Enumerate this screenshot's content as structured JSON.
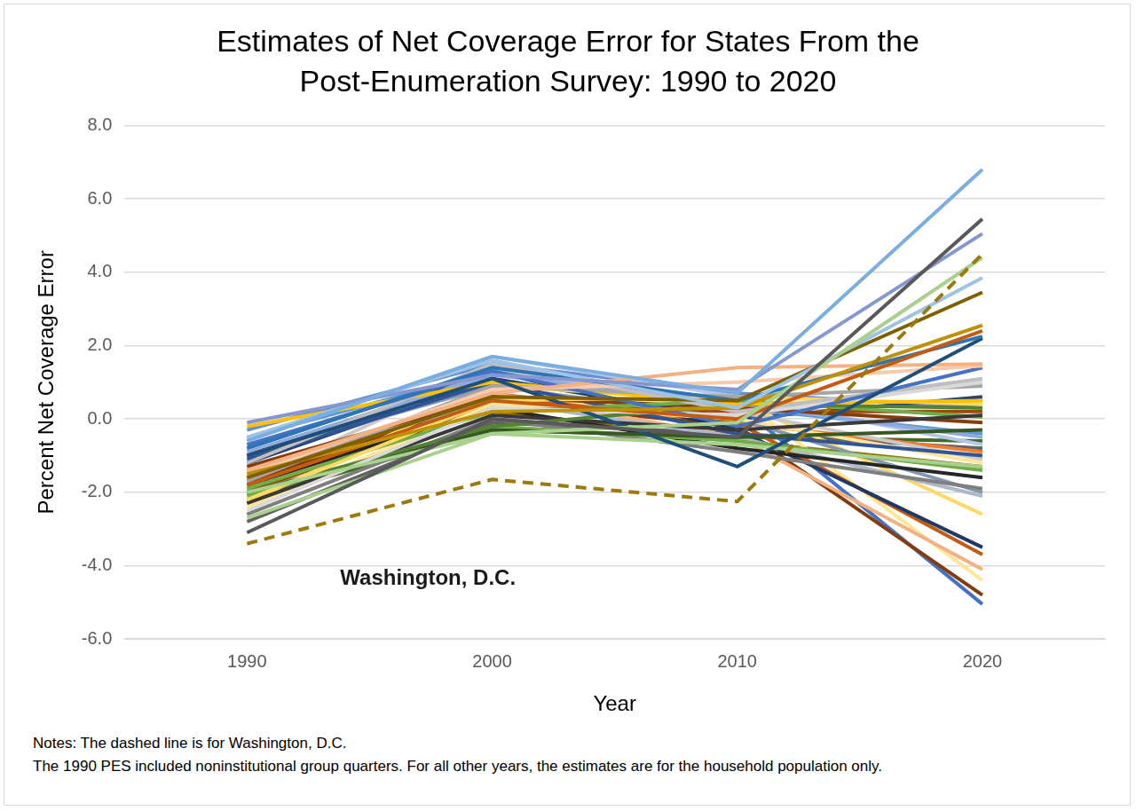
{
  "chart_data": {
    "type": "line",
    "title": [
      "Estimates of Net Coverage Error for States From the",
      "Post-Enumeration Survey: 1990 to 2020"
    ],
    "x_label": "Year",
    "y_label": "Percent Net Coverage Error",
    "notes": [
      "Notes: The dashed line is for Washington, D.C.",
      "The 1990 PES included noninstitutional group quarters. For all other years, the estimates are for the household population only."
    ],
    "categories": [
      "1990",
      "2000",
      "2010",
      "2020"
    ],
    "ylim": [
      -6,
      8
    ],
    "yticks": [
      {
        "value": -6,
        "label": "-6.0"
      },
      {
        "value": -4,
        "label": "-4.0"
      },
      {
        "value": -2,
        "label": "-2.0"
      },
      {
        "value": 0,
        "label": "0.0"
      },
      {
        "value": 2,
        "label": "2.0"
      },
      {
        "value": 4,
        "label": "4.0"
      },
      {
        "value": 6,
        "label": "6.0"
      },
      {
        "value": 8,
        "label": "8.0"
      }
    ],
    "grid": true,
    "series": [
      {
        "color": "#7aaee0",
        "values": [
          -0.6,
          1.7,
          0.7,
          6.8
        ]
      },
      {
        "color": "#595959",
        "values": [
          -3.1,
          0.0,
          -0.5,
          5.45
        ]
      },
      {
        "color": "#8497d0",
        "values": [
          -0.1,
          1.2,
          0.8,
          5.05
        ]
      },
      {
        "color": "#a9d18e",
        "values": [
          -2.0,
          -0.4,
          -0.1,
          4.4
        ]
      },
      {
        "color": "#9dc3e6",
        "values": [
          -0.5,
          1.6,
          0.3,
          3.85
        ]
      },
      {
        "color": "#7f6000",
        "values": [
          -1.6,
          0.6,
          0.5,
          3.45
        ]
      },
      {
        "color": "#bf9000",
        "values": [
          -1.5,
          0.2,
          0.3,
          2.55
        ]
      },
      {
        "color": "#c55a11",
        "values": [
          -1.8,
          0.5,
          0.0,
          2.4
        ]
      },
      {
        "color": "#2e75b6",
        "values": [
          -0.8,
          1.4,
          0.5,
          2.25
        ]
      },
      {
        "color": "#1f4e79",
        "values": [
          -1.0,
          1.1,
          -1.3,
          2.2
        ]
      },
      {
        "color": "#f4b183",
        "values": [
          -1.4,
          0.7,
          1.4,
          1.5
        ]
      },
      {
        "color": "#f8cbad",
        "values": [
          -1.5,
          0.8,
          1.0,
          1.45
        ]
      },
      {
        "color": "#4472c4",
        "values": [
          -0.7,
          1.3,
          -0.2,
          1.4
        ]
      },
      {
        "color": "#bfbfbf",
        "values": [
          -1.2,
          1.5,
          0.2,
          1.1
        ]
      },
      {
        "color": "#d9d9d9",
        "values": [
          -2.5,
          0.3,
          0.1,
          1.0
        ]
      },
      {
        "color": "#a5a5a5",
        "values": [
          -1.7,
          0.9,
          0.6,
          0.9
        ]
      },
      {
        "color": "#ffc000",
        "values": [
          -0.2,
          1.0,
          0.4,
          0.5
        ]
      },
      {
        "color": "#ffd966",
        "values": [
          -2.2,
          0.5,
          0.6,
          0.4
        ]
      },
      {
        "color": "#548235",
        "values": [
          -2.0,
          -0.2,
          0.4,
          0.3
        ]
      },
      {
        "color": "#3b3838",
        "values": [
          -2.3,
          0.1,
          -0.3,
          0.1
        ]
      },
      {
        "color": "#70ad47",
        "values": [
          -1.9,
          0.2,
          0.5,
          0.05
        ]
      },
      {
        "color": "#843c0c",
        "values": [
          -1.3,
          0.6,
          0.3,
          -0.1
        ]
      },
      {
        "color": "#385723",
        "values": [
          -2.0,
          -0.3,
          -0.5,
          -0.3
        ]
      },
      {
        "color": "#8faadc",
        "values": [
          -0.9,
          1.2,
          0.4,
          -0.5
        ]
      },
      {
        "color": "#b4c7e7",
        "values": [
          -0.6,
          1.7,
          0.6,
          -0.7
        ]
      },
      {
        "color": "#2f5597",
        "values": [
          -1.1,
          1.0,
          -0.4,
          -1.0
        ]
      },
      {
        "color": "#c9c9c9",
        "values": [
          -1.7,
          1.4,
          0.2,
          -1.1
        ]
      },
      {
        "color": "#ffe699",
        "values": [
          -2.4,
          0.4,
          0.0,
          -1.2
        ]
      },
      {
        "color": "#a9d18e",
        "values": [
          -2.7,
          -0.4,
          -0.7,
          -1.3
        ]
      },
      {
        "color": "#70ad47",
        "values": [
          -2.1,
          -0.2,
          -0.6,
          -1.4
        ]
      },
      {
        "color": "#262626",
        "values": [
          -1.8,
          0.3,
          -0.8,
          -1.6
        ]
      },
      {
        "color": "#7f7f7f",
        "values": [
          -2.6,
          0.0,
          -0.9,
          -1.9
        ]
      },
      {
        "color": "#8497b0",
        "values": [
          -1.0,
          0.9,
          0.0,
          -2.0
        ]
      },
      {
        "color": "#adb9ca",
        "values": [
          -1.4,
          0.5,
          -0.5,
          -2.1
        ]
      },
      {
        "color": "#ffd966",
        "values": [
          -2.3,
          0.9,
          0.5,
          -2.6
        ]
      },
      {
        "color": "#203864",
        "values": [
          -1.0,
          1.3,
          -0.3,
          -3.5
        ]
      },
      {
        "color": "#c55a11",
        "values": [
          -1.6,
          0.6,
          -0.1,
          -3.7
        ]
      },
      {
        "color": "#f4b183",
        "values": [
          -1.4,
          0.7,
          -0.5,
          -4.1
        ]
      },
      {
        "color": "#ffe699",
        "values": [
          -2.4,
          0.3,
          0.6,
          -4.4
        ]
      },
      {
        "color": "#843c0c",
        "values": [
          -1.7,
          0.5,
          -0.2,
          -4.8
        ]
      },
      {
        "color": "#4472c4",
        "values": [
          -0.8,
          1.4,
          0.4,
          -5.05
        ]
      },
      {
        "color": "#5b9bd5",
        "values": [
          -0.5,
          1.3,
          0.3,
          -0.4
        ]
      },
      {
        "color": "#ed7d31",
        "values": [
          -1.5,
          0.7,
          -0.1,
          -0.9
        ]
      },
      {
        "color": "#9e480e",
        "values": [
          -2.0,
          0.4,
          0.2,
          0.2
        ]
      },
      {
        "color": "#636363",
        "values": [
          -2.8,
          -0.1,
          -0.4,
          -0.8
        ]
      },
      {
        "color": "#997300",
        "values": [
          -1.7,
          0.2,
          -0.6,
          -1.3
        ]
      },
      {
        "color": "#264478",
        "values": [
          -1.2,
          1.1,
          0.0,
          0.6
        ]
      },
      {
        "color": "#43682b",
        "values": [
          -2.2,
          -0.3,
          -0.5,
          -0.6
        ]
      },
      {
        "color": "#698ed0",
        "values": [
          -0.3,
          1.5,
          0.7,
          0.3
        ]
      },
      {
        "name": "Washington, D.C.",
        "color": "#9c7a0c",
        "line_style": "dashed",
        "values": [
          -3.4,
          -1.65,
          -2.25,
          4.5
        ]
      }
    ]
  }
}
